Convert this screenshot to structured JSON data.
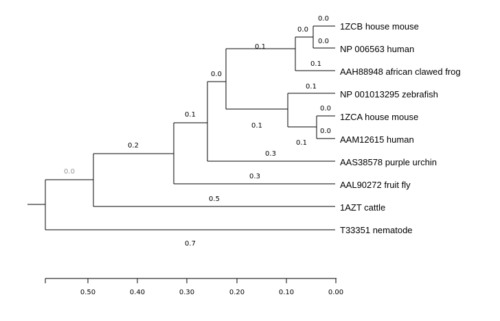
{
  "tree": {
    "leaves": [
      "1ZCB house mouse",
      "NP 006563 human",
      "AAH88948 african clawed frog",
      "NP 001013295 zebrafish",
      "1ZCA house mouse",
      "AAM12615 human",
      "AAS38578 purple urchin",
      "AAL90272 fruit fly",
      "1AZT cattle",
      "T33351 nematode"
    ],
    "branch_length_labels": {
      "mouse_human_1zcb": "0.0",
      "zcb_leaf": "0.0",
      "np006563_leaf": "0.0",
      "frog_leaf": "0.1",
      "mammal_frog_clade": "0.1",
      "vertebrate_clade": "0.0",
      "zebrafish_leaf": "0.1",
      "fish_clade": "0.1",
      "zca_leaf": "0.0",
      "aam_leaf": "0.0",
      "zca_aam_clade": "0.1",
      "urchin_leaf": "0.3",
      "deuterostome_clade": "0.1",
      "fruitfly_leaf": "0.3",
      "insect_clade": "0.2",
      "cattle_leaf": "0.5",
      "root_upper": "0.0",
      "nematode_leaf": "0.7"
    },
    "colors": {
      "branch": "#000000",
      "muted_label": "#999999"
    }
  },
  "scale_axis": {
    "tick_labels": [
      "0.50",
      "0.40",
      "0.30",
      "0.20",
      "0.10",
      "0.00"
    ]
  }
}
